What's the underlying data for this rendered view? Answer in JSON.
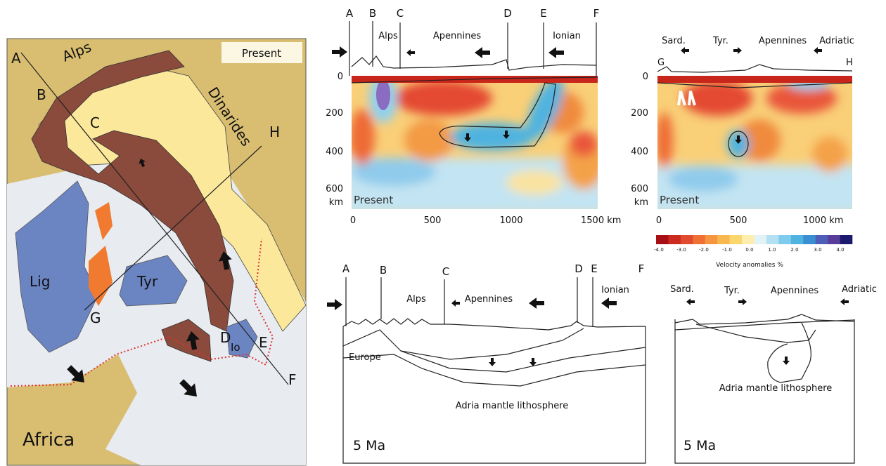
{
  "map": {
    "labels": {
      "a": "A",
      "b": "B",
      "c": "C",
      "h": "H",
      "alps": "Alps",
      "present": "Present",
      "dinarides": "Dinarides",
      "lig": "Lig",
      "tyr": "Tyr",
      "g": "G",
      "d": "D",
      "io": "Io",
      "e": "E",
      "f": "F",
      "africa": "Africa"
    }
  },
  "tomography_af": {
    "section_labels": [
      "A",
      "B",
      "C",
      "D",
      "E",
      "F"
    ],
    "region_labels": [
      "Alps",
      "Apennines",
      "Ionian"
    ],
    "y_ticks": [
      "0",
      "200",
      "400",
      "600"
    ],
    "y_unit": "km",
    "x_ticks": [
      "0",
      "500",
      "1000",
      "1500 km"
    ],
    "inset": "Present"
  },
  "tomography_gh": {
    "section_labels": [
      "G",
      "H"
    ],
    "region_labels": [
      "Sard.",
      "Tyr.",
      "Apennines",
      "Adriatic"
    ],
    "y_ticks": [
      "0",
      "200",
      "400",
      "600"
    ],
    "y_unit": "km",
    "x_ticks": [
      "0",
      "500",
      "1000 km"
    ],
    "inset": "Present"
  },
  "colorbar": {
    "ticks": [
      "-4.0",
      "-3.0",
      "-2.0",
      "-1.0",
      "0.0",
      "1.0",
      "2.0",
      "3.0",
      "4.0"
    ],
    "title": "Velocity anomalies %"
  },
  "model_af": {
    "section_labels": [
      "A",
      "B",
      "C",
      "D",
      "E",
      "F"
    ],
    "region_labels": [
      "Alps",
      "Apennines",
      "Ionian"
    ],
    "plate_labels": [
      "Europe",
      "Adria mantle lithosphere"
    ],
    "age": "5 Ma"
  },
  "model_gh": {
    "region_labels": [
      "Sard.",
      "Tyr.",
      "Apennines",
      "Adriatic"
    ],
    "plate_labels": [
      "Adria mantle lithosphere"
    ],
    "age": "5 Ma"
  }
}
